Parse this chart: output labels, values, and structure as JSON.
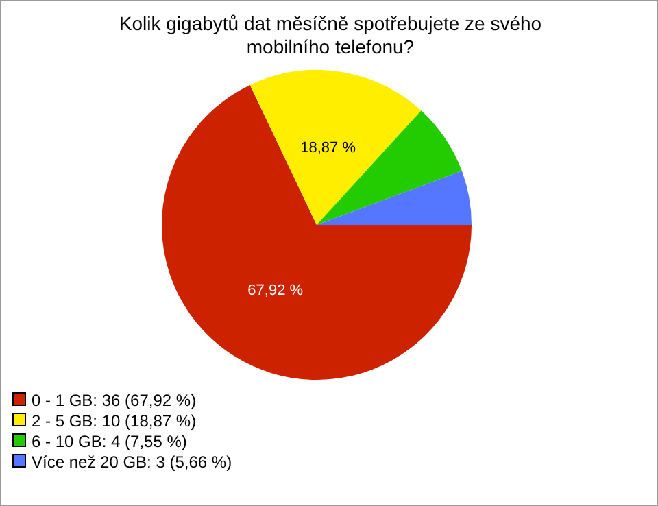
{
  "chart_data": {
    "type": "pie",
    "title": "Kolik gigabytů dat měsíčně spotřebujete ze svého mobilního telefonu?",
    "categories": [
      "0 - 1 GB: 36 (67,92 %)",
      "2 - 5 GB: 10 (18,87 %)",
      "6 - 10 GB: 4 (7,55 %)",
      "Více než 20 GB: 3 (5,66 %)"
    ],
    "values": [
      67.92,
      18.87,
      7.55,
      5.66
    ],
    "colors": [
      "#cc2200",
      "#ffee00",
      "#22cc00",
      "#5577ff"
    ],
    "value_labels": [
      "67,92 %",
      "18,87 %",
      null,
      null
    ],
    "legend": "bottom left"
  }
}
